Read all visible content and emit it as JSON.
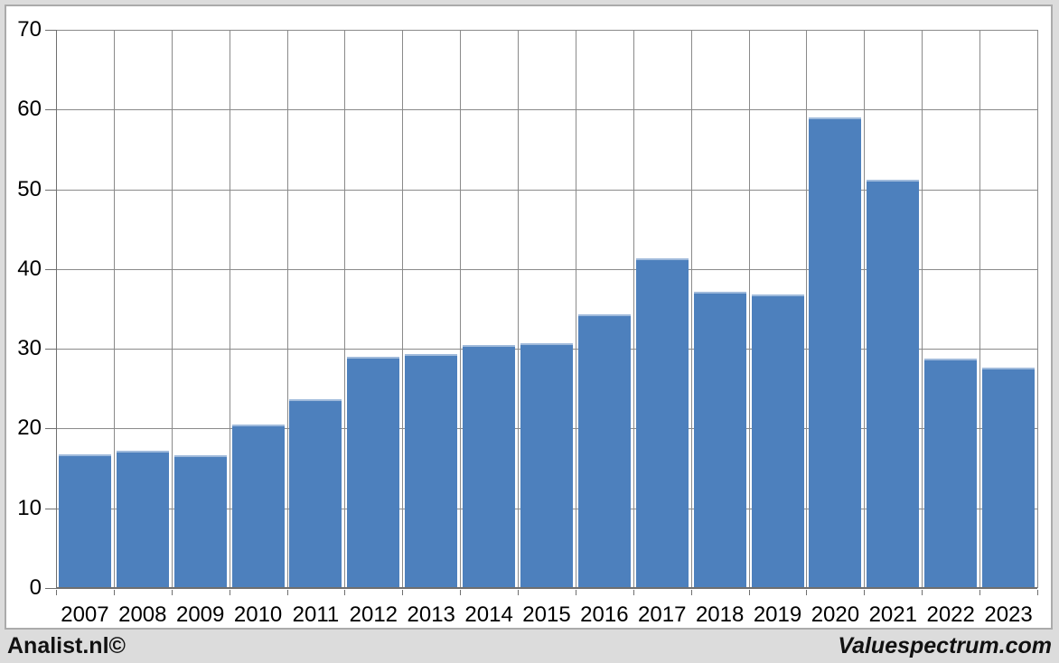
{
  "chart_data": {
    "type": "bar",
    "title": "",
    "xlabel": "",
    "ylabel": "",
    "categories": [
      "2007",
      "2008",
      "2009",
      "2010",
      "2011",
      "2012",
      "2013",
      "2014",
      "2015",
      "2016",
      "2017",
      "2018",
      "2019",
      "2020",
      "2021",
      "2022",
      "2023"
    ],
    "values": [
      16.8,
      17.2,
      16.6,
      20.5,
      23.7,
      29.0,
      29.3,
      30.5,
      30.7,
      34.3,
      41.3,
      37.1,
      36.8,
      59.0,
      51.2,
      28.8,
      27.6
    ],
    "ylim": [
      0,
      70
    ],
    "yticks": [
      0,
      10,
      20,
      30,
      40,
      50,
      60,
      70
    ],
    "grid": true,
    "legend": null,
    "colors": {
      "bar": "#4d80bd",
      "bar_top_edge": "#9fbadb",
      "gridline": "#8a8a8a",
      "axis": "#6f6f6f",
      "plot_background": "#ffffff",
      "panel_border": "#ababab",
      "page_background": "#dcdcdc",
      "label_text": "#000000"
    }
  },
  "footer": {
    "left_label": "Analist.nl©",
    "right_label": "Valuespectrum.com"
  }
}
